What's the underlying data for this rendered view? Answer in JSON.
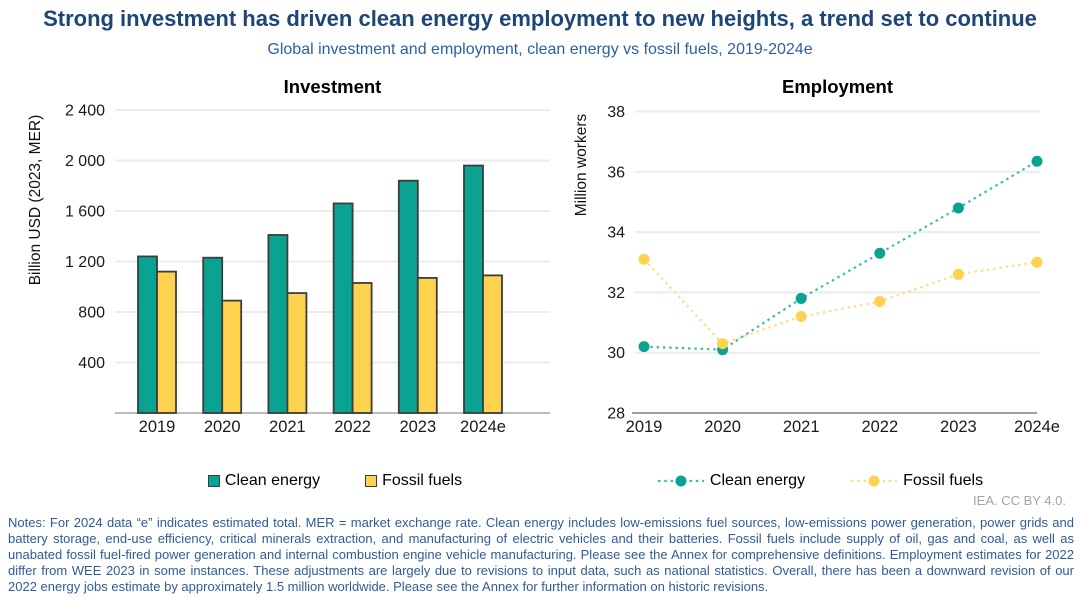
{
  "header": {
    "title": "Strong investment has driven clean energy employment to new heights, a trend set to continue",
    "subtitle": "Global investment and employment, clean energy vs fossil fuels, 2019-2024e"
  },
  "attribution": "IEA. CC BY 4.0.",
  "notes": "Notes: For 2024 data “e” indicates estimated total. MER = market exchange rate. Clean energy includes low-emissions fuel sources, low-emissions power generation, power grids and battery storage, end-use efficiency, critical minerals extraction, and manufacturing of electric vehicles and their batteries. Fossil fuels include supply of oil, gas and coal, as well as unabated fossil fuel-fired power generation and internal combustion engine vehicle manufacturing. Please see the Annex for comprehensive definitions. Employment estimates for 2022 differ from WEE 2023 in some instances. These adjustments are largely due to revisions to input data, such as national statistics. Overall, there has been a downward revision of our 2022 energy jobs estimate by approximately 1.5 million worldwide. Please see the Annex for further information on historic revisions.",
  "colors": {
    "clean": "#0aa392",
    "fossil": "#fdd24e",
    "clean_line": "#3dbcaa",
    "fossil_line": "#fede85",
    "bar_border": "#3c3c3c",
    "grid": "#ececec",
    "axis_left": "#a6a6a6",
    "axis_right": "#7f7f7f",
    "title_navy": "#1d4577",
    "subtitle_blue": "#2e5f9e",
    "notes_blue": "#2d5c99"
  },
  "chart_data": [
    {
      "type": "bar",
      "title": "Investment",
      "ylabel": "Billion USD (2023, MER)",
      "categories": [
        "2019",
        "2020",
        "2021",
        "2022",
        "2023",
        "2024e"
      ],
      "series": [
        {
          "name": "Clean energy",
          "values": [
            1240,
            1230,
            1410,
            1660,
            1840,
            1960
          ]
        },
        {
          "name": "Fossil fuels",
          "values": [
            1120,
            890,
            950,
            1030,
            1070,
            1090
          ]
        }
      ],
      "ylim": [
        0,
        2400
      ],
      "yticks": [
        400,
        800,
        1200,
        1600,
        2000,
        2400
      ],
      "ytick_labels": [
        "400",
        "800",
        "1 200",
        "1 600",
        "2 000",
        "2 400"
      ],
      "grid": true,
      "legend_position": "bottom"
    },
    {
      "type": "line",
      "title": "Employment",
      "ylabel": "Million workers",
      "categories": [
        "2019",
        "2020",
        "2021",
        "2022",
        "2023",
        "2024e"
      ],
      "series": [
        {
          "name": "Clean energy",
          "values": [
            30.2,
            30.1,
            31.8,
            33.3,
            34.8,
            36.35
          ]
        },
        {
          "name": "Fossil fuels",
          "values": [
            33.1,
            30.3,
            31.2,
            31.7,
            32.6,
            33.0
          ]
        }
      ],
      "ylim": [
        28,
        38
      ],
      "yticks": [
        28,
        30,
        32,
        34,
        36,
        38
      ],
      "ytick_labels": [
        "28",
        "30",
        "32",
        "34",
        "36",
        "38"
      ],
      "grid": true,
      "line_style": "dotted",
      "markers": true,
      "legend_position": "bottom"
    }
  ]
}
